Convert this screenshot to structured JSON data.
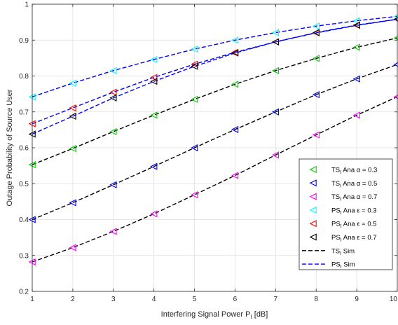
{
  "chart_data": {
    "type": "line",
    "xlabel": "Interfering Signal Power P_I [dB]",
    "ylabel": "Outage Probability of Source User",
    "xlim": [
      1,
      10
    ],
    "ylim": [
      0.2,
      1
    ],
    "x_ticks": [
      "1",
      "2",
      "3",
      "4",
      "5",
      "6",
      "7",
      "8",
      "9",
      "10"
    ],
    "y_ticks": [
      "0.2",
      "0.3",
      "0.4",
      "0.5",
      "0.6",
      "0.7",
      "0.8",
      "0.9",
      "1"
    ],
    "grid": true,
    "legend_position": "lower-right",
    "x": [
      1,
      2,
      3,
      4,
      5,
      6,
      7,
      8,
      9,
      10
    ],
    "marker_series": [
      {
        "name": "TS_I Ana α = 0.3",
        "main": "TS",
        "sub": "I",
        "rest": " Ana α = 0.3",
        "color": "#00d000",
        "marker": "left-triangle",
        "values": [
          0.553,
          0.598,
          0.645,
          0.691,
          0.735,
          0.777,
          0.815,
          0.849,
          0.88,
          0.906
        ]
      },
      {
        "name": "TS_I Ana α = 0.5",
        "main": "TS",
        "sub": "I",
        "rest": " Ana α = 0.5",
        "color": "#0000ff",
        "marker": "left-triangle",
        "values": [
          0.4,
          0.447,
          0.497,
          0.548,
          0.6,
          0.651,
          0.7,
          0.748,
          0.792,
          0.832
        ]
      },
      {
        "name": "TS_I Ana α = 0.7",
        "main": "TS",
        "sub": "I",
        "rest": " Ana α = 0.7",
        "color": "#ff00ff",
        "marker": "left-triangle",
        "values": [
          0.282,
          0.322,
          0.367,
          0.416,
          0.469,
          0.523,
          0.58,
          0.636,
          0.691,
          0.742
        ]
      },
      {
        "name": "PS_I Ana ε = 0.3",
        "main": "PS",
        "sub": "I",
        "rest": " Ana ε = 0.3",
        "color": "#00ffff",
        "marker": "left-triangle",
        "values": [
          0.742,
          0.78,
          0.815,
          0.846,
          0.875,
          0.9,
          0.921,
          0.939,
          0.954,
          0.966
        ]
      },
      {
        "name": "PS_I Ana ε = 0.5",
        "main": "PS",
        "sub": "I",
        "rest": " Ana ε = 0.5",
        "color": "#ff0000",
        "marker": "left-triangle",
        "values": [
          0.667,
          0.711,
          0.755,
          0.796,
          0.833,
          0.866,
          0.895,
          0.92,
          0.941,
          0.958
        ]
      },
      {
        "name": "PS_I Ana ε = 0.7",
        "main": "PS",
        "sub": "I",
        "rest": " Ana ε = 0.7",
        "color": "#000000",
        "marker": "left-triangle",
        "values": [
          0.638,
          0.688,
          0.739,
          0.785,
          0.827,
          0.864,
          0.895,
          0.921,
          0.942,
          0.958
        ]
      }
    ],
    "line_series": [
      {
        "name": "TS_I Sim",
        "main": "TS",
        "sub": "I",
        "rest": " Sim",
        "color": "#000000",
        "dash": "dashed",
        "curves": [
          [
            0.553,
            0.598,
            0.645,
            0.691,
            0.735,
            0.777,
            0.815,
            0.849,
            0.88,
            0.906
          ],
          [
            0.4,
            0.447,
            0.497,
            0.548,
            0.6,
            0.651,
            0.7,
            0.748,
            0.792,
            0.832
          ],
          [
            0.282,
            0.322,
            0.367,
            0.416,
            0.469,
            0.523,
            0.58,
            0.636,
            0.691,
            0.742
          ]
        ]
      },
      {
        "name": "PS_I Sim",
        "main": "PS",
        "sub": "I",
        "rest": " Sim",
        "color": "#0000ff",
        "dash": "dashed",
        "curves": [
          [
            0.742,
            0.78,
            0.815,
            0.846,
            0.875,
            0.9,
            0.921,
            0.939,
            0.954,
            0.966
          ],
          [
            0.667,
            0.711,
            0.755,
            0.796,
            0.833,
            0.866,
            0.895,
            0.92,
            0.941,
            0.958
          ],
          [
            0.638,
            0.688,
            0.739,
            0.785,
            0.827,
            0.864,
            0.895,
            0.921,
            0.942,
            0.958
          ]
        ]
      }
    ]
  }
}
